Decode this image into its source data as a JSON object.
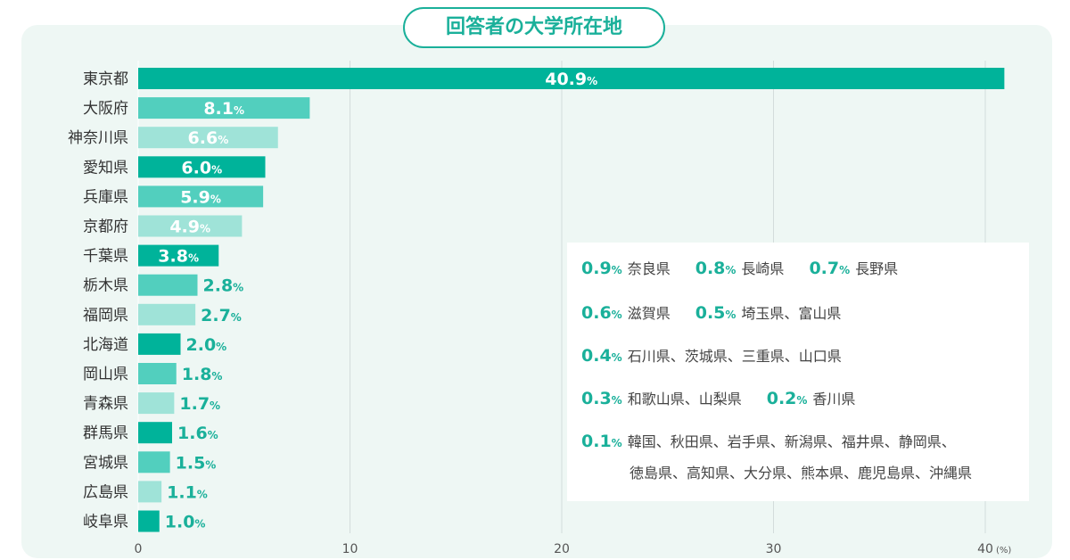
{
  "title": "回答者の大学所在地",
  "chart_data": {
    "type": "bar",
    "orientation": "horizontal",
    "categories": [
      "東京都",
      "大阪府",
      "神奈川県",
      "愛知県",
      "兵庫県",
      "京都府",
      "千葉県",
      "栃木県",
      "福岡県",
      "北海道",
      "岡山県",
      "青森県",
      "群馬県",
      "宮城県",
      "広島県",
      "岐阜県"
    ],
    "values": [
      40.9,
      8.1,
      6.6,
      6.0,
      5.9,
      4.9,
      3.8,
      2.8,
      2.7,
      2.0,
      1.8,
      1.7,
      1.6,
      1.5,
      1.1,
      1.0
    ],
    "value_labels": [
      "40.9",
      "8.1",
      "6.6",
      "6.0",
      "5.9",
      "4.9",
      "3.8",
      "2.8",
      "2.7",
      "2.0",
      "1.8",
      "1.7",
      "1.6",
      "1.5",
      "1.1",
      "1.0"
    ],
    "value_unit": "%",
    "x_ticks": [
      "0",
      "10",
      "20",
      "30",
      "40"
    ],
    "x_unit": "(%)",
    "xlim": [
      0,
      42
    ],
    "grid": "vertical",
    "colors": [
      "#00b39a",
      "#52cfbe",
      "#9fe3d8"
    ],
    "label_color": "#1ab09a"
  },
  "others": {
    "unit": "%",
    "rows": [
      {
        "entries": [
          {
            "pct": "0.9",
            "places": "奈良県"
          },
          {
            "pct": "0.8",
            "places": "長崎県"
          },
          {
            "pct": "0.7",
            "places": "長野県"
          }
        ]
      },
      {
        "entries": [
          {
            "pct": "0.6",
            "places": "滋賀県"
          },
          {
            "pct": "0.5",
            "places": "埼玉県、富山県"
          }
        ]
      },
      {
        "entries": [
          {
            "pct": "0.4",
            "places": "石川県、茨城県、三重県、山口県"
          }
        ]
      },
      {
        "entries": [
          {
            "pct": "0.3",
            "places": "和歌山県、山梨県"
          },
          {
            "pct": "0.2",
            "places": "香川県"
          }
        ]
      },
      {
        "entries": [
          {
            "pct": "0.1",
            "places": "韓国、秋田県、岩手県、新潟県、福井県、静岡県、"
          }
        ],
        "continuation": "徳島県、高知県、大分県、熊本県、鹿児島県、沖縄県"
      }
    ]
  }
}
